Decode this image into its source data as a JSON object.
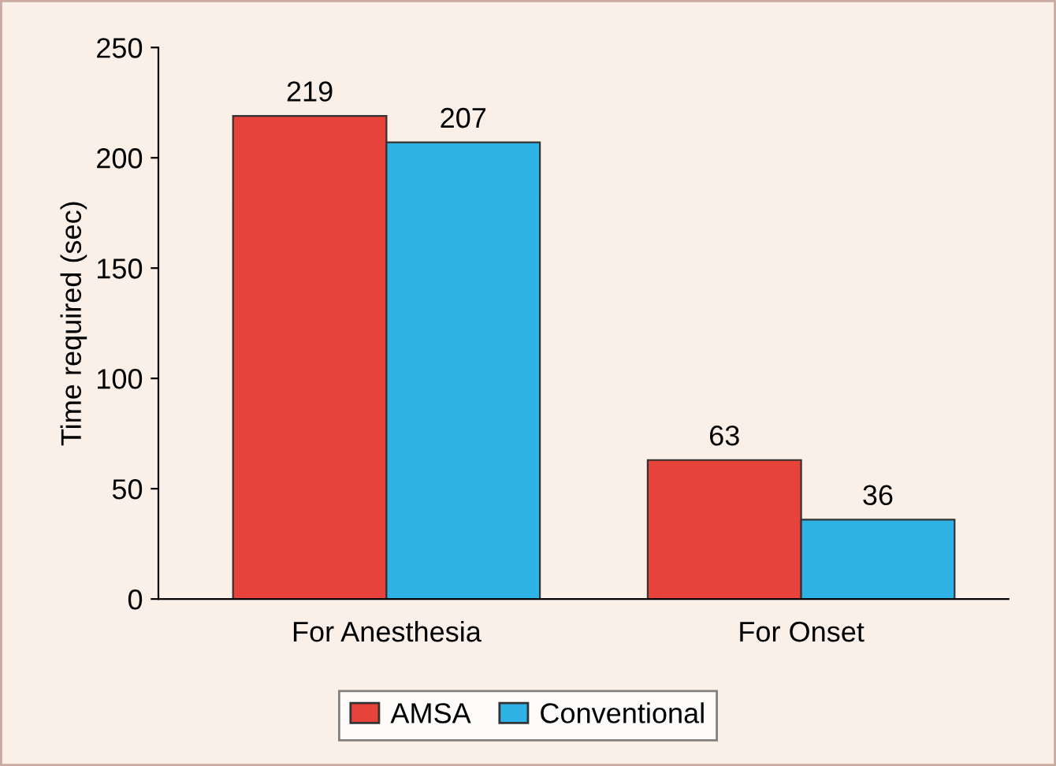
{
  "chart_data": {
    "type": "bar",
    "ylabel": "Time required (sec)",
    "categories": [
      "For Anesthesia",
      "For Onset"
    ],
    "series": [
      {
        "name": "AMSA",
        "color": "#e8433a",
        "values": [
          219,
          63
        ]
      },
      {
        "name": "Conventional",
        "color": "#2fb3e6",
        "values": [
          207,
          36
        ]
      }
    ],
    "ylim": [
      0,
      250
    ],
    "yticks": [
      0,
      50,
      100,
      150,
      200,
      250
    ],
    "data_labels": true,
    "legend": "bottom",
    "grid": false
  }
}
